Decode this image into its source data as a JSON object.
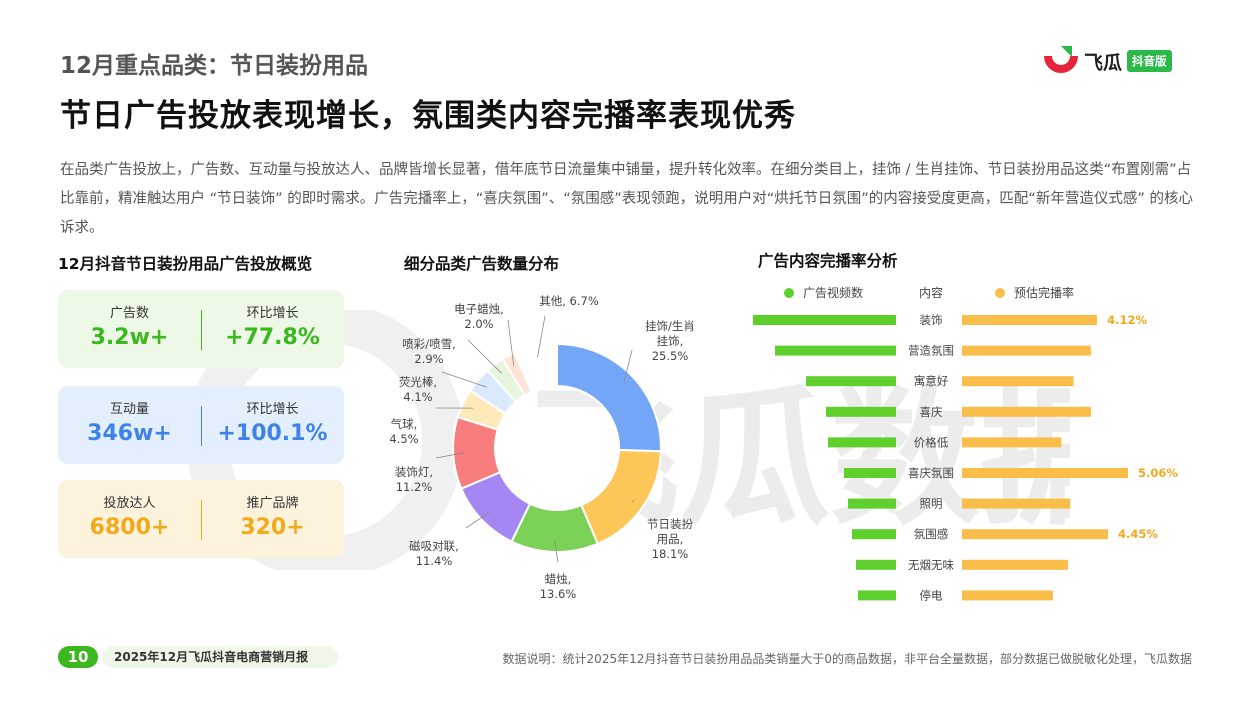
{
  "header": {
    "subtitle": "12月重点品类：节日装扮用品",
    "headline": "节日广告投放表现增长，氛围类内容完播率表现优秀",
    "intro": "在品类广告投放上，广告数、互动量与投放达人、品牌皆增长显著，借年底节日流量集中铺量，提升转化效率。在细分类目上，挂饰 / 生肖挂饰、节日装扮用品这类“布置刚需”占比靠前，精准触达用户 “节日装饰” 的即时需求。广告完播率上，“喜庆氛围”、“氛围感”表现领跑，说明用户对“烘托节日氛围”的内容接受度更高，匹配“新年营造仪式感” 的核心诉求。"
  },
  "logo": {
    "text": "飞瓜",
    "tag": "抖音版",
    "colors": {
      "red": "#e8243c",
      "green": "#2db84a"
    }
  },
  "watermark": {
    "text": "飞瓜数据"
  },
  "overview": {
    "title": "12月抖音节日装扮用品广告投放概览",
    "cards": [
      {
        "left_label": "广告数",
        "left_value": "3.2w+",
        "right_label": "环比增长",
        "right_value": "+77.8%",
        "color": "#3bb71f"
      },
      {
        "left_label": "互动量",
        "left_value": "346w+",
        "right_label": "环比增长",
        "right_value": "+100.1%",
        "color": "#3f83e8"
      },
      {
        "left_label": "投放达人",
        "left_value": "6800+",
        "right_label": "推广品牌",
        "right_value": "320+",
        "color": "#f2a91b"
      }
    ]
  },
  "donut_section": {
    "title": "细分品类广告数量分布"
  },
  "bars_section": {
    "title": "广告内容完播率分析"
  },
  "chart_data": [
    {
      "type": "pie",
      "title": "细分品类广告数量分布",
      "hole": true,
      "slices": [
        {
          "label": "挂饰/生肖挂饰",
          "lines": [
            "挂饰/生肖",
            "挂饰,",
            "25.5%"
          ],
          "value": 25.5,
          "color": "#73a6f7"
        },
        {
          "label": "节日装扮用品",
          "lines": [
            "节日装扮",
            "用品,",
            "18.1%"
          ],
          "value": 18.1,
          "color": "#fcc659"
        },
        {
          "label": "蜡烛",
          "lines": [
            "蜡烛,",
            "13.6%"
          ],
          "value": 13.6,
          "color": "#7bd155"
        },
        {
          "label": "磁吸对联",
          "lines": [
            "磁吸对联,",
            "11.4%"
          ],
          "value": 11.4,
          "color": "#a487f2"
        },
        {
          "label": "装饰灯",
          "lines": [
            "装饰灯,",
            "11.2%"
          ],
          "value": 11.2,
          "color": "#f87d7d"
        },
        {
          "label": "气球",
          "lines": [
            "气球,",
            "4.5%"
          ],
          "value": 4.5,
          "color": "#fdeab8"
        },
        {
          "label": "荧光棒",
          "lines": [
            "荧光棒,",
            "4.1%"
          ],
          "value": 4.1,
          "color": "#dbe9fc"
        },
        {
          "label": "喷彩/喷雪",
          "lines": [
            "喷彩/喷雪,",
            "2.9%"
          ],
          "value": 2.9,
          "color": "#e6f5dc"
        },
        {
          "label": "电子蜡烛",
          "lines": [
            "电子蜡烛,",
            "2.0%"
          ],
          "value": 2.0,
          "color": "#fde2d6"
        },
        {
          "label": "其他",
          "lines": [
            "其他, 6.7%"
          ],
          "value": 6.7,
          "color": "#ffffff"
        }
      ]
    },
    {
      "type": "bar",
      "title": "广告内容完播率分析",
      "legend": {
        "left": "广告视频数",
        "middle": "内容",
        "right": "预估完播率",
        "placement": "top"
      },
      "left_series": {
        "name": "广告视频数",
        "color": "#5fcf2e"
      },
      "right_series": {
        "name": "预估完播率",
        "color": "#fbbd4a"
      },
      "note": "left bar values are relative (no axis printed); right values in percent",
      "categories": [
        "装饰",
        "营造氛围",
        "寓意好",
        "喜庆",
        "价格低",
        "喜庆氛围",
        "照明",
        "氛围感",
        "无烟无味",
        "停电"
      ],
      "video_counts": [
        143,
        121,
        90,
        70,
        68,
        52,
        48,
        44,
        40,
        38
      ],
      "completion_rates": [
        4.12,
        3.93,
        3.4,
        3.93,
        3.03,
        5.06,
        3.3,
        4.45,
        3.23,
        2.77
      ],
      "rate_labels": [
        "4.12%",
        "",
        "",
        "",
        "",
        "5.06%",
        "",
        "4.45%",
        "",
        ""
      ]
    }
  ],
  "footer": {
    "page_number": "10",
    "report_name": "2025年12月飞瓜抖音电商营销月报",
    "note": "数据说明：统计2025年12月抖音节日装扮用品品类销量大于0的商品数据，非平台全量数据，部分数据已做脱敏化处理，飞瓜数据"
  }
}
